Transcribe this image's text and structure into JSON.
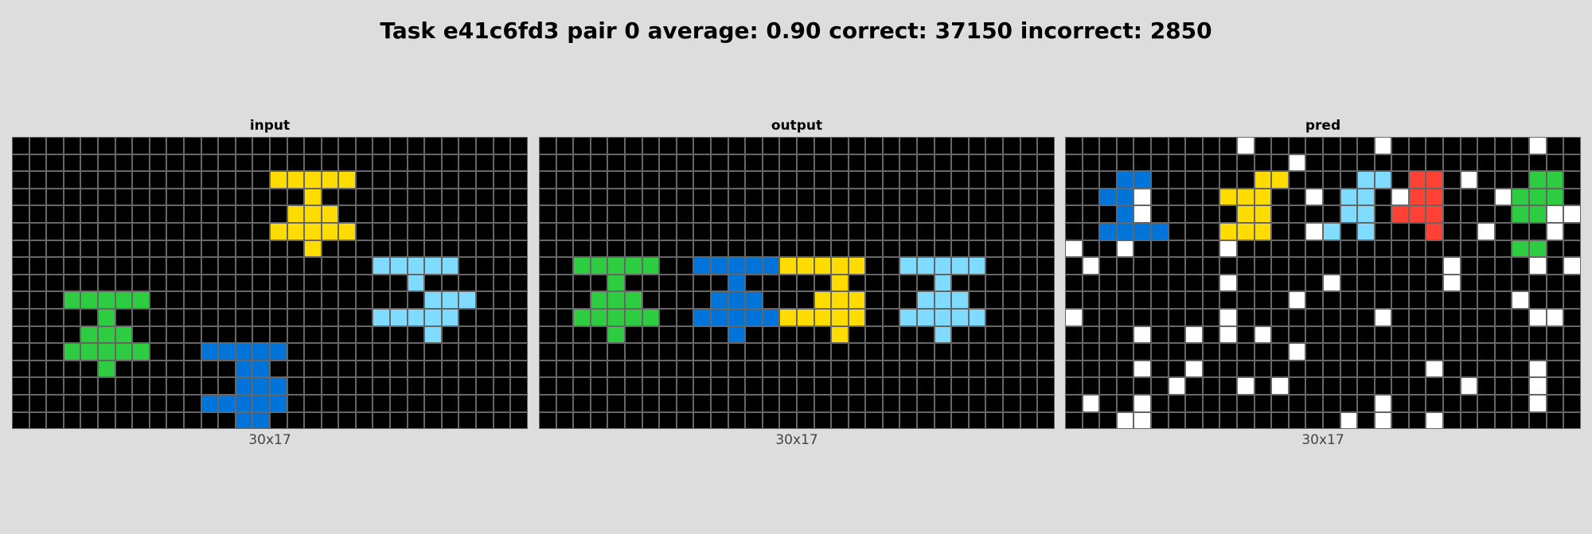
{
  "title": "Task e41c6fd3 pair 0 average: 0.90 correct: 37150 incorrect: 2850",
  "palette": {
    "0": "#000000",
    "1": "#0074D9",
    "2": "#FF4136",
    "3": "#2ECC40",
    "4": "#FFDC00",
    "5": "#AAAAAA",
    "6": "#F012BE",
    "7": "#FF851B",
    "8": "#7FDBFF",
    "9": "#870C25",
    "w": "#FFFFFF"
  },
  "panels": [
    {
      "label": "input",
      "size": "30x17",
      "rows": [
        "000000000000000000000000000000",
        "000000000000000000000000000000",
        "000000000000000444440000000000",
        "000000000000000004000000000000",
        "000000000000000044400000000000",
        "000000000000000444440000000000",
        "000000000000000004000000000000",
        "000000000000000000000888880000",
        "000000000000000000000008000000",
        "000333330000000000000000888000",
        "000003000000000000000888880000",
        "000033300000000000000000800000",
        "000333330001111100000000000000",
        "000003000000011000000000000000",
        "000000000000011100000000000000",
        "000000000001111100000000000000",
        "000000000000011000000000000000"
      ]
    },
    {
      "label": "output",
      "size": "30x17",
      "rows": [
        "000000000000000000000000000000",
        "000000000000000000000000000000",
        "000000000000000000000000000000",
        "000000000000000000000000000000",
        "000000000000000000000000000000",
        "000000000000000000000000000000",
        "000000000000000000000000000000",
        "003333300111114444400888880000",
        "000030000001000004000008000000",
        "000333000011100044400088800000",
        "003333300111114444400888880000",
        "000030000001000004000008000000",
        "000000000000000000000000000000",
        "000000000000000000000000000000",
        "000000000000000000000000000000",
        "000000000000000000000000000000",
        "000000000000000000000000000000"
      ]
    },
    {
      "label": "pred",
      "size": "30x17",
      "rows": [
        "0000000000w0000000w00000000w00",
        "0000000000000w0000000000000000",
        "00011000000440000880220w000330",
        "0011w000044400w0880w22000w3330",
        "0001w00000440000880222000033ww",
        "00111100044400w808000200w000w0",
        "w00w00000w00000000000000003300",
        "0w00000000000000000000w0000w0w",
        "000000000w00000w000000w0000000",
        "0000000000000w000000000000w000",
        "w00000000w00000000w00000000ww0",
        "0000w00w0w0w000000000000000000",
        "0000000000000w0000000000000000",
        "0000w00w0000000000000w00000w00",
        "000000w000w0w0000000000w000w00",
        "0w00w0000000000000w00000000w00",
        "000ww00000000000w0w00w00000000"
      ]
    }
  ]
}
